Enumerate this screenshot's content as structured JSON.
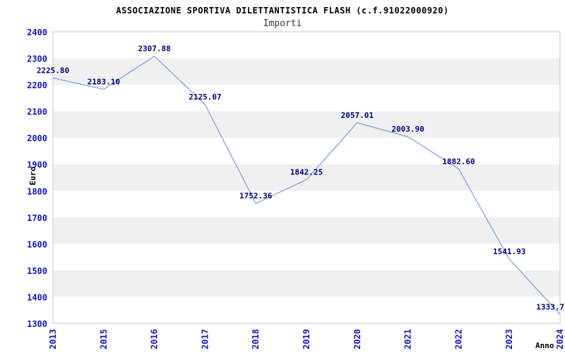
{
  "chart_data": {
    "type": "line",
    "title": "ASSOCIAZIONE SPORTIVA DILETTANTISTICA FLASH (c.f.91022000920)",
    "subtitle": "Importi",
    "xlabel": "Anno",
    "ylabel": "Euro",
    "x": [
      "2013",
      "2015",
      "2016",
      "2017",
      "2018",
      "2019",
      "2020",
      "2021",
      "2022",
      "2023",
      "2024"
    ],
    "values": [
      2225.8,
      2183.1,
      2307.88,
      2125.07,
      1752.36,
      1842.25,
      2057.01,
      2003.9,
      1882.6,
      1541.93,
      1333.7
    ],
    "point_labels": [
      "2225.80",
      "2183.10",
      "2307.88",
      "2125.07",
      "1752.36",
      "1842.25",
      "2057.01",
      "2003.90",
      "1882.60",
      "1541.93",
      "1333.7"
    ],
    "ylim": [
      1300,
      2400
    ],
    "y_tick_step": 100,
    "grid": "horizontal-bands",
    "legend": "none",
    "colors": {
      "line": "#7aa7dd",
      "band": "#f0f0f0",
      "plot_background": "#ffffff",
      "plot_border": "#c8c8c8",
      "tick_label": "#1414cc",
      "point_label": "#000080",
      "title": "#000000",
      "subtitle": "#3c3c3c",
      "axis_title": "#000000"
    }
  }
}
